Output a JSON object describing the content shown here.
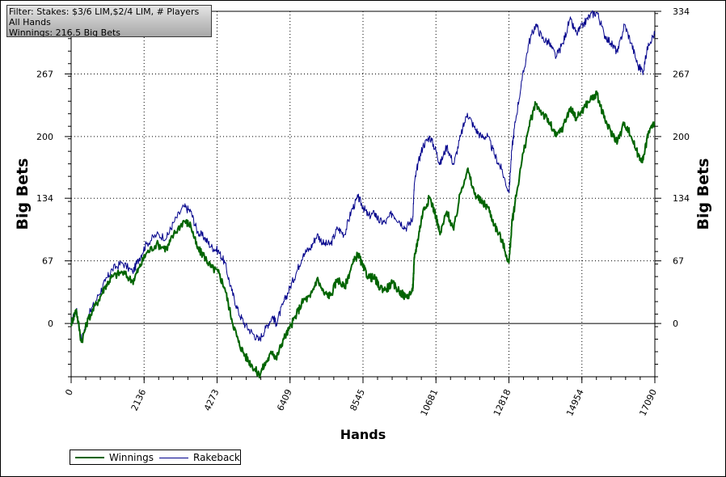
{
  "info": {
    "line1": "Filter: Stakes: $3/6 LIM,$2/4 LIM, # Players",
    "line2": "All Hands",
    "line3": "Winnings: 216.5 Big Bets"
  },
  "legend": {
    "winnings_label": "Winnings",
    "rakeback_label": "Rakeback"
  },
  "colors": {
    "winnings": "#006400",
    "rakeback": "#00008b",
    "grid": "#000000"
  },
  "chart_data": {
    "type": "line",
    "xlabel": "Hands",
    "ylabel": "Big Bets",
    "xlim": [
      0,
      17090
    ],
    "ylim": [
      -57,
      334
    ],
    "x_ticks": [
      0,
      2136,
      4273,
      6409,
      8545,
      10681,
      12818,
      14954,
      17090
    ],
    "y_ticks": [
      0,
      67,
      134,
      200,
      267,
      334
    ],
    "grid": "dotted",
    "legend_position": "bottom-left",
    "series": [
      {
        "name": "Winnings",
        "x": [
          0,
          150,
          300,
          500,
          800,
          1000,
          1200,
          1500,
          1800,
          2000,
          2200,
          2500,
          2800,
          3000,
          3300,
          3500,
          3700,
          3900,
          4100,
          4300,
          4500,
          4700,
          4900,
          5100,
          5300,
          5500,
          5700,
          5900,
          6000,
          6200,
          6400,
          6600,
          6800,
          7000,
          7200,
          7400,
          7600,
          7800,
          8000,
          8200,
          8400,
          8545,
          8700,
          8900,
          9000,
          9200,
          9400,
          9600,
          9800,
          10000,
          10050,
          10150,
          10300,
          10500,
          10681,
          10800,
          11000,
          11200,
          11400,
          11600,
          11800,
          12000,
          12200,
          12400,
          12600,
          12818,
          12900,
          13000,
          13200,
          13400,
          13600,
          13800,
          14000,
          14200,
          14400,
          14600,
          14800,
          15000,
          15200,
          15400,
          15600,
          15800,
          16000,
          16200,
          16400,
          16600,
          16750,
          16900,
          17090
        ],
        "values": [
          0,
          15,
          -20,
          5,
          25,
          40,
          50,
          55,
          45,
          60,
          75,
          85,
          80,
          95,
          110,
          105,
          80,
          72,
          60,
          55,
          38,
          5,
          -20,
          -35,
          -45,
          -55,
          -42,
          -30,
          -38,
          -18,
          -5,
          10,
          25,
          28,
          48,
          32,
          30,
          48,
          38,
          60,
          75,
          60,
          50,
          48,
          40,
          36,
          43,
          35,
          28,
          35,
          70,
          90,
          120,
          135,
          115,
          95,
          120,
          100,
          140,
          165,
          140,
          130,
          125,
          105,
          90,
          65,
          105,
          130,
          175,
          210,
          235,
          225,
          215,
          200,
          210,
          230,
          220,
          230,
          240,
          245,
          220,
          205,
          195,
          215,
          200,
          180,
          175,
          205,
          215
        ]
      },
      {
        "name": "Rakeback",
        "x": [
          0,
          150,
          300,
          500,
          800,
          1000,
          1200,
          1500,
          1800,
          2000,
          2200,
          2500,
          2800,
          3000,
          3300,
          3500,
          3700,
          3900,
          4100,
          4300,
          4500,
          4700,
          4900,
          5100,
          5300,
          5500,
          5700,
          5900,
          6000,
          6200,
          6400,
          6600,
          6800,
          7000,
          7200,
          7400,
          7600,
          7800,
          8000,
          8200,
          8400,
          8545,
          8700,
          8900,
          9000,
          9200,
          9400,
          9600,
          9800,
          10000,
          10050,
          10150,
          10300,
          10500,
          10681,
          10800,
          11000,
          11200,
          11400,
          11600,
          11800,
          12000,
          12200,
          12400,
          12600,
          12818,
          12900,
          13000,
          13200,
          13400,
          13600,
          13800,
          14000,
          14200,
          14400,
          14600,
          14800,
          15000,
          15200,
          15400,
          15600,
          15800,
          16000,
          16200,
          16400,
          16600,
          16750,
          16900,
          17090
        ],
        "values": [
          0,
          15,
          -18,
          8,
          30,
          45,
          58,
          65,
          55,
          70,
          85,
          95,
          92,
          108,
          125,
          120,
          98,
          92,
          82,
          78,
          65,
          35,
          12,
          -2,
          -10,
          -18,
          -5,
          8,
          0,
          20,
          38,
          55,
          75,
          80,
          95,
          85,
          85,
          102,
          95,
          120,
          135,
          125,
          115,
          118,
          110,
          108,
          118,
          110,
          102,
          112,
          150,
          170,
          190,
          200,
          185,
          170,
          190,
          170,
          200,
          225,
          210,
          200,
          200,
          180,
          165,
          140,
          185,
          215,
          260,
          300,
          320,
          305,
          300,
          285,
          300,
          325,
          310,
          320,
          330,
          333,
          310,
          300,
          290,
          320,
          300,
          275,
          270,
          300,
          310
        ]
      }
    ]
  }
}
